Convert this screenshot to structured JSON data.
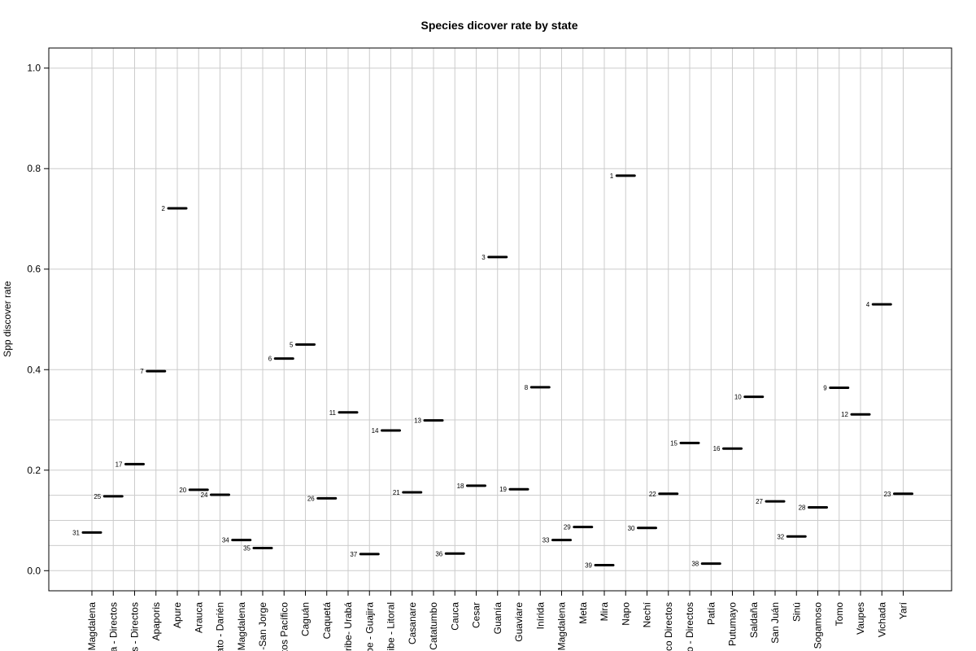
{
  "chart_data": {
    "type": "scatter",
    "title": "Species dicover rate by state",
    "ylabel": "Spp discover rate",
    "xlabel": "",
    "ylim": [
      -0.04,
      1.04
    ],
    "yticks": [
      0.0,
      0.2,
      0.4,
      0.6,
      0.8,
      1.0
    ],
    "ytick_labels": [
      "0.0",
      "0.2",
      "0.4",
      "0.6",
      "0.8",
      "1.0"
    ],
    "extra_gridlines": [
      0.05,
      0.1,
      0.15,
      0.3
    ],
    "grid": true,
    "categories": [
      "Magdalena",
      "a - Directos",
      "s - Directos",
      "Apaporis",
      "Apure",
      "Arauca",
      "ato - Darién",
      "Magdalena",
      "-San Jorge",
      "tos Pacífico",
      "Caguán",
      "Caquetá",
      "ribe- Urabá",
      "be - Guajira",
      "ibe - Litoral",
      "Casanare",
      "Catatumbo",
      "Cauca",
      "Cesar",
      "Guanía",
      "Guaviare",
      "Inírida",
      "Magdalena",
      "Meta",
      "Mira",
      "Napo",
      "Nechí",
      "co Directos",
      "o - Directos",
      "Patía",
      "Putumayo",
      "Saldaña",
      "San Juán",
      "Sinú",
      "Sogamoso",
      "Tomo",
      "Vaupes",
      "Vichada",
      "Yarí"
    ],
    "values": [
      0.076,
      0.148,
      0.212,
      0.397,
      0.721,
      0.161,
      0.151,
      0.061,
      0.045,
      0.422,
      0.45,
      0.144,
      0.315,
      0.033,
      0.279,
      0.156,
      0.299,
      0.034,
      0.169,
      0.624,
      0.162,
      0.365,
      0.061,
      0.087,
      0.011,
      0.786,
      0.085,
      0.153,
      0.254,
      0.014,
      0.243,
      0.346,
      0.138,
      0.068,
      0.126,
      0.364,
      0.311,
      0.53,
      0.153
    ],
    "ranks": [
      "31",
      "25",
      "17",
      "7",
      "2",
      "20",
      "24",
      "34",
      "35",
      "6",
      "5",
      "26",
      "11",
      "37",
      "14",
      "21",
      "13",
      "36",
      "18",
      "3",
      "19",
      "8",
      "33",
      "29",
      "39",
      "1",
      "30",
      "22",
      "15",
      "38",
      "16",
      "10",
      "27",
      "32",
      "28",
      "9",
      "12",
      "4",
      "23"
    ],
    "colors": {
      "marker": "#000000",
      "grid": "#cccccc",
      "frame": "#000000"
    }
  }
}
